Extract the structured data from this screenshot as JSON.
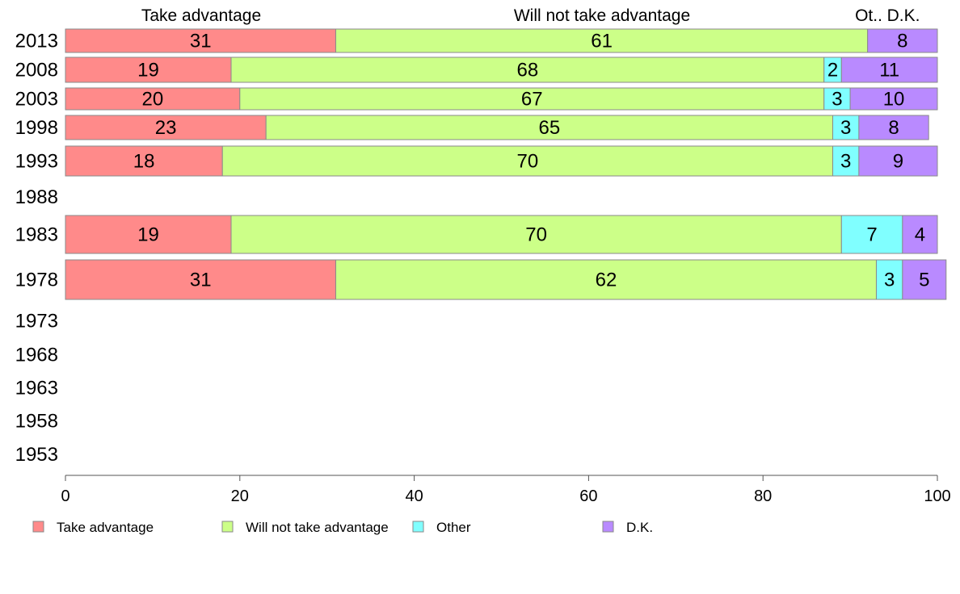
{
  "chart_data": {
    "type": "bar",
    "orientation": "horizontal",
    "stacked": true,
    "categories": [
      "2013",
      "2008",
      "2003",
      "1998",
      "1993",
      "1988",
      "1983",
      "1978",
      "1973",
      "1968",
      "1963",
      "1958",
      "1953"
    ],
    "series": [
      {
        "name": "Take advantage",
        "color": "#ff8a8a",
        "values": [
          31,
          19,
          20,
          23,
          18,
          null,
          19,
          31,
          null,
          null,
          null,
          null,
          null
        ]
      },
      {
        "name": "Will not take advantage",
        "color": "#ccff88",
        "values": [
          61,
          68,
          67,
          65,
          70,
          null,
          70,
          62,
          null,
          null,
          null,
          null,
          null
        ]
      },
      {
        "name": "Other",
        "color": "#80ffff",
        "values": [
          null,
          2,
          3,
          3,
          3,
          null,
          7,
          3,
          null,
          null,
          null,
          null,
          null
        ]
      },
      {
        "name": "D.K.",
        "color": "#b98aff",
        "values": [
          8,
          11,
          10,
          8,
          9,
          null,
          4,
          5,
          null,
          null,
          null,
          null,
          null
        ]
      }
    ],
    "segment_headers": [
      "Take advantage",
      "Will not take advantage",
      "Ot..",
      "D.K."
    ],
    "x_ticks": [
      "0",
      "20",
      "40",
      "60",
      "80",
      "100"
    ],
    "xlim": [
      0,
      100
    ],
    "grid": false,
    "legend_position": "bottom"
  }
}
